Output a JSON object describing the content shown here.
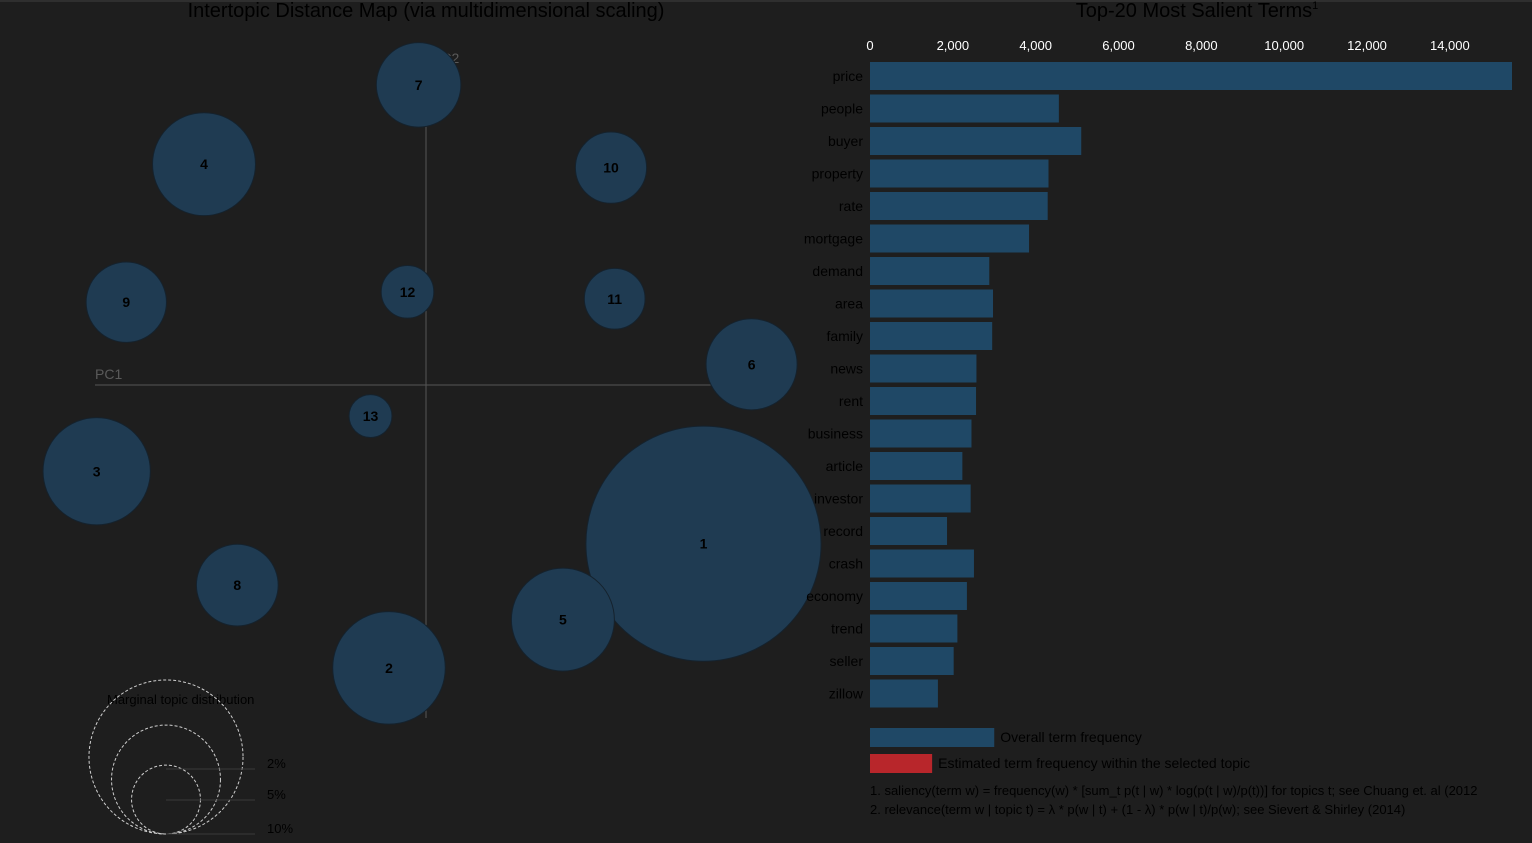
{
  "colors": {
    "background": "#1e1e1e",
    "topic_fill": "#1f3b52",
    "topic_stroke": "#15222d",
    "bar_overall": "#1f4866",
    "bar_topic": "#b8262b",
    "axis_line": "#555555"
  },
  "chart_data": [
    {
      "type": "scatter",
      "title": "Intertopic Distance Map (via multidimensional scaling)",
      "xlabel": "PC1",
      "ylabel": "PC2",
      "points": [
        {
          "label": "1",
          "x": 0.75,
          "y": -0.46,
          "size": 24.0
        },
        {
          "label": "2",
          "x": -0.1,
          "y": -0.82,
          "size": 5.5
        },
        {
          "label": "3",
          "x": -0.89,
          "y": -0.25,
          "size": 5.0
        },
        {
          "label": "4",
          "x": -0.6,
          "y": 0.64,
          "size": 4.6
        },
        {
          "label": "5",
          "x": 0.37,
          "y": -0.68,
          "size": 4.6
        },
        {
          "label": "6",
          "x": 0.88,
          "y": 0.06,
          "size": 3.6
        },
        {
          "label": "7",
          "x": -0.02,
          "y": 0.87,
          "size": 3.1
        },
        {
          "label": "8",
          "x": -0.51,
          "y": -0.58,
          "size": 2.9
        },
        {
          "label": "9",
          "x": -0.81,
          "y": 0.24,
          "size": 2.8
        },
        {
          "label": "10",
          "x": 0.5,
          "y": 0.63,
          "size": 2.2
        },
        {
          "label": "11",
          "x": 0.51,
          "y": 0.25,
          "size": 1.6
        },
        {
          "label": "12",
          "x": -0.05,
          "y": 0.27,
          "size": 1.2
        },
        {
          "label": "13",
          "x": -0.15,
          "y": -0.09,
          "size": 0.8
        }
      ],
      "legend": {
        "title": "Marginal topic distribution",
        "levels": [
          {
            "label": "2%",
            "value": 2
          },
          {
            "label": "5%",
            "value": 5
          },
          {
            "label": "10%",
            "value": 10
          }
        ]
      }
    },
    {
      "type": "bar",
      "orientation": "horizontal",
      "title": "Top-20 Most Salient Terms",
      "title_superscript": "1",
      "xlim": [
        0,
        15500
      ],
      "xticks": [
        {
          "value": 0,
          "label": "0"
        },
        {
          "value": 2000,
          "label": "2,000"
        },
        {
          "value": 4000,
          "label": "4,000"
        },
        {
          "value": 6000,
          "label": "6,000"
        },
        {
          "value": 8000,
          "label": "8,000"
        },
        {
          "value": 10000,
          "label": "10,000"
        },
        {
          "value": 12000,
          "label": "12,000"
        },
        {
          "value": 14000,
          "label": "14,000"
        }
      ],
      "categories": [
        "price",
        "people",
        "buyer",
        "property",
        "rate",
        "mortgage",
        "demand",
        "area",
        "family",
        "news",
        "rent",
        "business",
        "article",
        "investor",
        "record",
        "crash",
        "economy",
        "trend",
        "seller",
        "zillow"
      ],
      "series": [
        {
          "name": "Overall term frequency",
          "values": [
            15500,
            4560,
            5100,
            4310,
            4290,
            3840,
            2880,
            2970,
            2950,
            2570,
            2560,
            2450,
            2230,
            2430,
            1860,
            2510,
            2340,
            2110,
            2020,
            1640
          ]
        }
      ],
      "legend": [
        {
          "label": "Overall term frequency",
          "color": "#1f4866",
          "value": 3000
        },
        {
          "label": "Estimated term frequency within the selected topic",
          "color": "#b8262b",
          "value": 1500
        }
      ],
      "footnotes": [
        "1. saliency(term w) = frequency(w) * [sum_t p(t | w) * log(p(t | w)/p(t))] for topics t; see Chuang et. al (2012",
        "2. relevance(term w | topic t) = λ * p(w | t) + (1 - λ) * p(w | t)/p(w); see Sievert & Shirley (2014)"
      ]
    }
  ]
}
